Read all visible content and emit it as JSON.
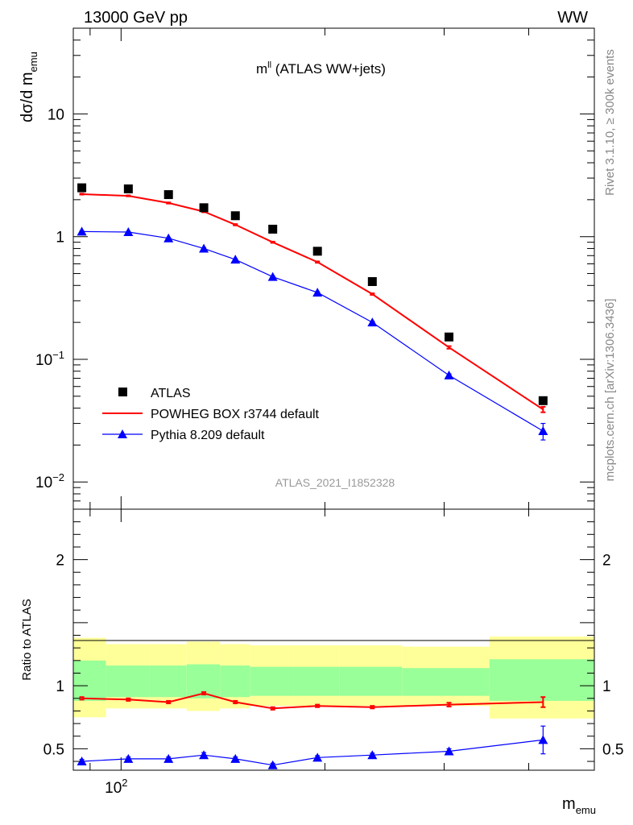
{
  "header": {
    "left": "13000 GeV pp",
    "right": "WW"
  },
  "side_text": {
    "rivet": "Rivet 3.1.10, ≥ 300k events",
    "mcplots": "mcplots.cern.ch [arXiv:1306.3436]"
  },
  "colors": {
    "data": "#000000",
    "powheg": "#ff0000",
    "pythia": "#0000ff",
    "band_outer": "#ffff99",
    "band_inner": "#99ff99",
    "watermark": "#999999"
  },
  "chart_data": [
    {
      "type": "scatter",
      "title": {
        "main": "m",
        "sup": "ll",
        "rest": " (ATLAS WW+jets)"
      },
      "ylabel": {
        "main": "dσ/d m",
        "sub": "emu"
      },
      "yscale": "log",
      "ylim": [
        0.006,
        50
      ],
      "xscale": "log",
      "xlim": [
        85,
        500
      ],
      "watermark": "ATLAS_2021_I1852328",
      "y_ticks": [
        {
          "value": 10,
          "label": "10",
          "sup": ""
        },
        {
          "value": 1,
          "label": "1",
          "sup": ""
        },
        {
          "value": 0.1,
          "label": "10",
          "sup": "−1"
        },
        {
          "value": 0.01,
          "label": "10",
          "sup": "−2"
        }
      ],
      "legend": {
        "placement": "bottom-left",
        "entries": [
          "ATLAS",
          "POWHEG BOX r3744 default",
          "Pythia 8.209 default"
        ]
      },
      "x": [
        87.5,
        102.5,
        117.5,
        132.5,
        147.5,
        167.5,
        195,
        235,
        305,
        420
      ],
      "series": [
        {
          "name": "ATLAS",
          "marker": "square",
          "values": [
            2.5,
            2.45,
            2.2,
            1.72,
            1.48,
            1.15,
            0.76,
            0.43,
            0.152,
            0.046
          ]
        },
        {
          "name": "POWHEG BOX r3744 default",
          "marker": "line",
          "values": [
            2.22,
            2.15,
            1.88,
            1.6,
            1.25,
            0.9,
            0.62,
            0.34,
            0.125,
            0.039
          ],
          "errors": [
            0.02,
            0.02,
            0.02,
            0.02,
            0.015,
            0.01,
            0.008,
            0.005,
            0.003,
            0.002
          ]
        },
        {
          "name": "Pythia 8.209 default",
          "marker": "triangle",
          "values": [
            1.1,
            1.09,
            0.97,
            0.8,
            0.65,
            0.47,
            0.35,
            0.2,
            0.074,
            0.026
          ],
          "errors": [
            0.01,
            0.01,
            0.01,
            0.01,
            0.008,
            0.006,
            0.005,
            0.004,
            0.002,
            0.004
          ]
        }
      ]
    },
    {
      "type": "line",
      "ylabel": "Ratio to ATLAS",
      "ylim": [
        0.33,
        2.4
      ],
      "y_ticks": [
        {
          "value": 2,
          "label": "2"
        },
        {
          "value": 1,
          "label": "1"
        },
        {
          "value": 0.5,
          "label": "0.5"
        }
      ],
      "x_ticks": [
        {
          "value": 100,
          "label": "10",
          "sup": "2"
        }
      ],
      "xlabel": {
        "main": "m",
        "sub": "emu"
      },
      "xlim": [
        85,
        500
      ],
      "x": [
        87.5,
        102.5,
        117.5,
        132.5,
        147.5,
        167.5,
        195,
        235,
        305,
        420
      ],
      "bands": {
        "edges": [
          85,
          95,
          110,
          125,
          140,
          155,
          180,
          210,
          260,
          350,
          500
        ],
        "outer": [
          [
            0.75,
            1.38
          ],
          [
            0.82,
            1.33
          ],
          [
            0.82,
            1.33
          ],
          [
            0.8,
            1.35
          ],
          [
            0.82,
            1.33
          ],
          [
            0.84,
            1.32
          ],
          [
            0.84,
            1.32
          ],
          [
            0.84,
            1.32
          ],
          [
            0.84,
            1.31
          ],
          [
            0.74,
            1.39
          ]
        ],
        "inner": [
          [
            0.88,
            1.2
          ],
          [
            0.91,
            1.16
          ],
          [
            0.91,
            1.16
          ],
          [
            0.9,
            1.17
          ],
          [
            0.91,
            1.16
          ],
          [
            0.92,
            1.15
          ],
          [
            0.92,
            1.15
          ],
          [
            0.92,
            1.15
          ],
          [
            0.92,
            1.14
          ],
          [
            0.88,
            1.21
          ]
        ]
      },
      "series": [
        {
          "name": "POWHEG BOX r3744 default",
          "values": [
            0.9,
            0.89,
            0.87,
            0.94,
            0.87,
            0.82,
            0.84,
            0.83,
            0.85,
            0.87
          ],
          "errors": [
            0.01,
            0.01,
            0.01,
            0.01,
            0.01,
            0.01,
            0.01,
            0.01,
            0.015,
            0.04
          ]
        },
        {
          "name": "Pythia 8.209 default",
          "values": [
            0.4,
            0.42,
            0.42,
            0.45,
            0.42,
            0.37,
            0.43,
            0.45,
            0.48,
            0.57
          ],
          "errors": [
            0.015,
            0.015,
            0.015,
            0.02,
            0.015,
            0.015,
            0.015,
            0.015,
            0.02,
            0.11
          ]
        }
      ]
    }
  ]
}
